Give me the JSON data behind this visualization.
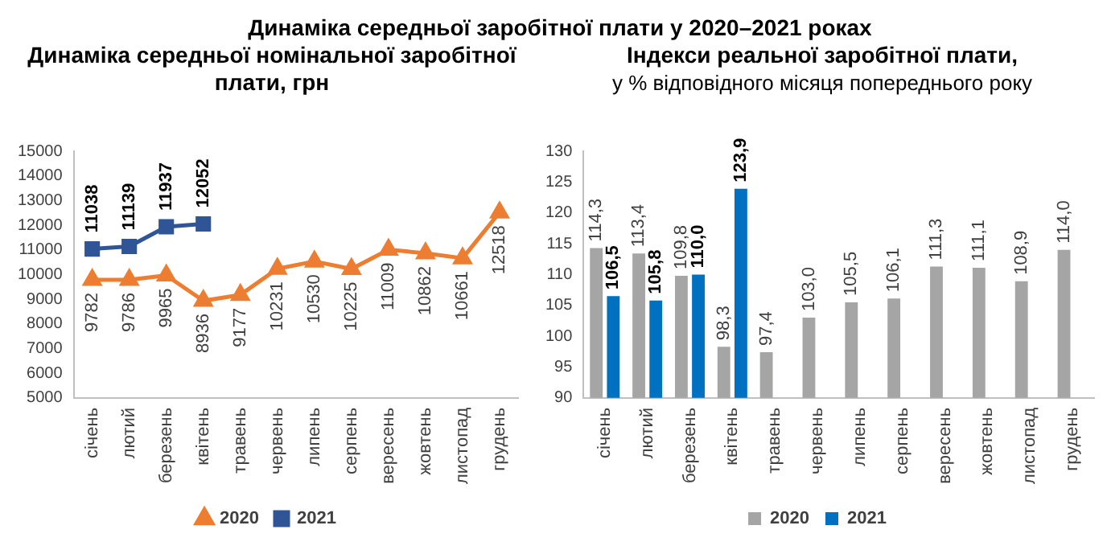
{
  "chart_data": [
    {
      "type": "other",
      "title": "Динаміка середньої заробітної плати у 2020–2021 роках"
    },
    {
      "type": "line",
      "title": "Динаміка середньої номінальної заробітної плати, грн",
      "categories": [
        "січень",
        "лютий",
        "березень",
        "квітень",
        "травень",
        "червень",
        "липень",
        "серпень",
        "вересень",
        "жовтень",
        "листопад",
        "грудень"
      ],
      "series": [
        {
          "name": "2020",
          "color": "#ed7d31",
          "marker": "triangle",
          "values": [
            9782,
            9786,
            9965,
            8936,
            9177,
            10231,
            10530,
            10225,
            11009,
            10862,
            10661,
            12518
          ]
        },
        {
          "name": "2021",
          "color": "#2f5597",
          "marker": "square",
          "values": [
            11038,
            11139,
            11937,
            12052,
            null,
            null,
            null,
            null,
            null,
            null,
            null,
            null
          ]
        }
      ],
      "ylim": [
        5000,
        15000
      ],
      "yticks": [
        5000,
        6000,
        7000,
        8000,
        9000,
        10000,
        11000,
        12000,
        13000,
        14000,
        15000
      ],
      "grid": false,
      "legend": "bottom",
      "data_labels": true
    },
    {
      "type": "bar",
      "title": "Індекси реальної заробітної плати,",
      "subtitle": "у % відповідного місяця попереднього року",
      "categories": [
        "січень",
        "лютий",
        "березень",
        "квітень",
        "травень",
        "червень",
        "липень",
        "серпень",
        "вересень",
        "жовтень",
        "листопад",
        "грудень"
      ],
      "series": [
        {
          "name": "2020",
          "color": "#a5a5a5",
          "values": [
            114.3,
            113.4,
            109.8,
            98.3,
            97.4,
            103.0,
            105.5,
            106.1,
            111.3,
            111.1,
            108.9,
            114.0
          ],
          "value_labels": [
            "114,3",
            "113,4",
            "109,8",
            "98,3",
            "97,4",
            "103,0",
            "105,5",
            "106,1",
            "111,3",
            "111,1",
            "108,9",
            "114,0"
          ]
        },
        {
          "name": "2021",
          "color": "#0070c0",
          "values": [
            106.5,
            105.8,
            110.0,
            123.9,
            null,
            null,
            null,
            null,
            null,
            null,
            null,
            null
          ],
          "value_labels": [
            "106,5",
            "105,8",
            "110,0",
            "123,9",
            null,
            null,
            null,
            null,
            null,
            null,
            null,
            null
          ]
        }
      ],
      "ylim": [
        90,
        130
      ],
      "yticks": [
        90,
        95,
        100,
        105,
        110,
        115,
        120,
        125,
        130
      ],
      "grid": false,
      "legend": "bottom"
    }
  ]
}
